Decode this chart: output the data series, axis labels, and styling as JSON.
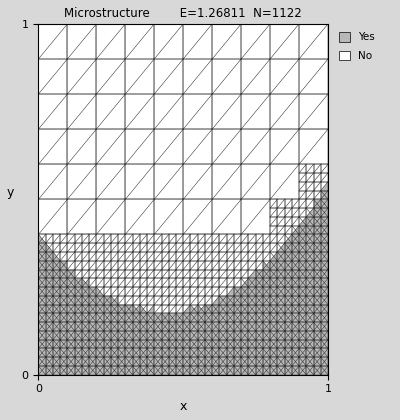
{
  "title": "Microstructure",
  "title2": "E=1.26811  N=1122",
  "xlabel": "x",
  "ylabel": "y",
  "xlim": [
    0,
    1
  ],
  "ylim": [
    0,
    1
  ],
  "yes_color": "#b8b8b8",
  "no_color": "#ffffff",
  "grid_color": "#222222",
  "bg_color": "#d8d8d8",
  "legend_yes": "Yes",
  "legend_no": "No",
  "lw_coarse": 0.5,
  "lw_fine": 0.3
}
